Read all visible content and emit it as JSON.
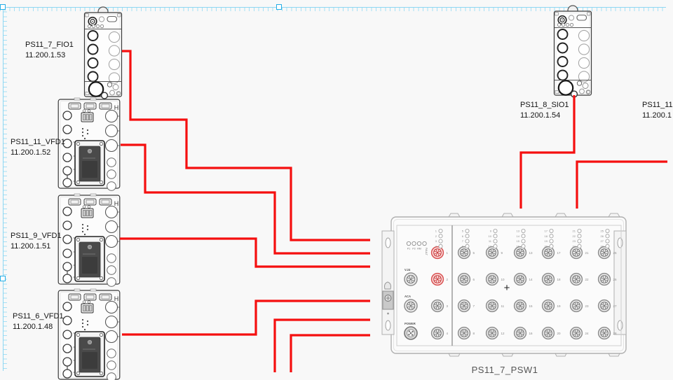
{
  "colors": {
    "wire": "#f50f0f",
    "selection": "#8ed7f2",
    "highlighted_port": "#d95252",
    "background": "#f8f8f8"
  },
  "labels": {
    "fio1": {
      "name": "PS11_7_FIO1",
      "ip": "11.200.1.53"
    },
    "vfd11": {
      "name": "PS11_11_VFD1",
      "ip": "11.200.1.52"
    },
    "vfd9": {
      "name": "PS11_9_VFD1",
      "ip": "11.200.1.51"
    },
    "vfd6": {
      "name": "PS11_6_VFD1",
      "ip": "11.200.1.48"
    },
    "sio1": {
      "name": "PS11_8_SIO1",
      "ip": "11.200.1.54"
    },
    "right_partial": {
      "name": "PS11_11",
      "ip": "11.200.1"
    },
    "switch": {
      "name": "PS11_7_PSW1"
    }
  },
  "vfd_module": {
    "corner_label": "H"
  },
  "switch_panel": {
    "status_leds": [
      "P1",
      "P2",
      "RM",
      "FAULT"
    ],
    "special_ports": [
      "V.24",
      "ACA",
      "POWER"
    ],
    "port_numbers": [
      1,
      2,
      3,
      4,
      5,
      6,
      7,
      8,
      9,
      10,
      11,
      12,
      13,
      14,
      15,
      16,
      17,
      18,
      19,
      20,
      21,
      22,
      23,
      24,
      25,
      26,
      27,
      28
    ],
    "highlighted_ports": [
      1,
      2
    ],
    "center_mark": "+"
  },
  "connections": [
    {
      "from": "PS11_7_FIO1",
      "to": "switch-left"
    },
    {
      "from": "PS11_11_VFD1",
      "to": "switch-left"
    },
    {
      "from": "PS11_9_VFD1",
      "to": "switch-left"
    },
    {
      "from": "PS11_6_VFD1",
      "to": "switch-left"
    },
    {
      "from": "offscreen-bottom",
      "to": "switch-left"
    },
    {
      "from": "offscreen-bottom",
      "to": "switch-left"
    },
    {
      "from": "PS11_8_SIO1",
      "to": "switch-top"
    },
    {
      "from": "offscreen-right",
      "to": "switch-top"
    }
  ]
}
